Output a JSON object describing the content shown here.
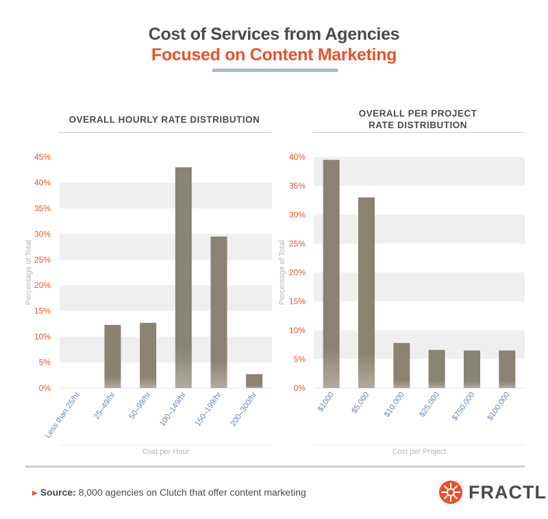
{
  "header": {
    "title_line1": "Cost of Services from Agencies",
    "title_line2": "Focused on Content Marketing"
  },
  "colors": {
    "accent": "#e8522a",
    "bar": "#8a8272",
    "bar_bottom": "#b3ab9c",
    "band": "#efefef",
    "title_rule": "#a9b8c9",
    "axis_text": "#e8522a",
    "category_text": "#6a86b0",
    "muted": "#b5b5b5"
  },
  "chart_data": [
    {
      "type": "bar",
      "title": "OVERALL HOURLY RATE DISTRIBUTION",
      "categories": [
        "Less than 25/hr",
        "25–49/hr",
        "50–99/hr",
        "100–149/hr",
        "150–199/hr",
        "200–300/hr"
      ],
      "values": [
        0,
        12.3,
        12.7,
        43.0,
        29.5,
        2.7
      ],
      "xlabel": "Cost per Hour",
      "ylabel": "Percentage of Total",
      "ylim": [
        0,
        45
      ],
      "yticks": [
        "0%",
        "5%",
        "10%",
        "15%",
        "20%",
        "25%",
        "30%",
        "35%",
        "40%",
        "45%"
      ]
    },
    {
      "type": "bar",
      "title": "OVERALL PER PROJECT RATE DISTRIBUTION",
      "categories": [
        "$1000",
        "$5,000",
        "$10,000",
        "$25,000",
        "$750,000",
        "$100,000"
      ],
      "values": [
        39.5,
        33.0,
        7.8,
        6.6,
        6.5,
        6.5
      ],
      "xlabel": "Cost per Project",
      "ylabel": "Percentage of Total",
      "ylim": [
        0,
        40
      ],
      "yticks": [
        "0%",
        "5%",
        "10%",
        "15%",
        "20%",
        "25%",
        "30%",
        "35%",
        "40%"
      ]
    }
  ],
  "footer": {
    "source_label": "Source:",
    "source_text": "8,000 agencies on Clutch that offer content marketing",
    "brand": "FRACTL"
  },
  "icons": {
    "caret": "caret-right-icon",
    "logo": "fractl-logo-icon"
  }
}
